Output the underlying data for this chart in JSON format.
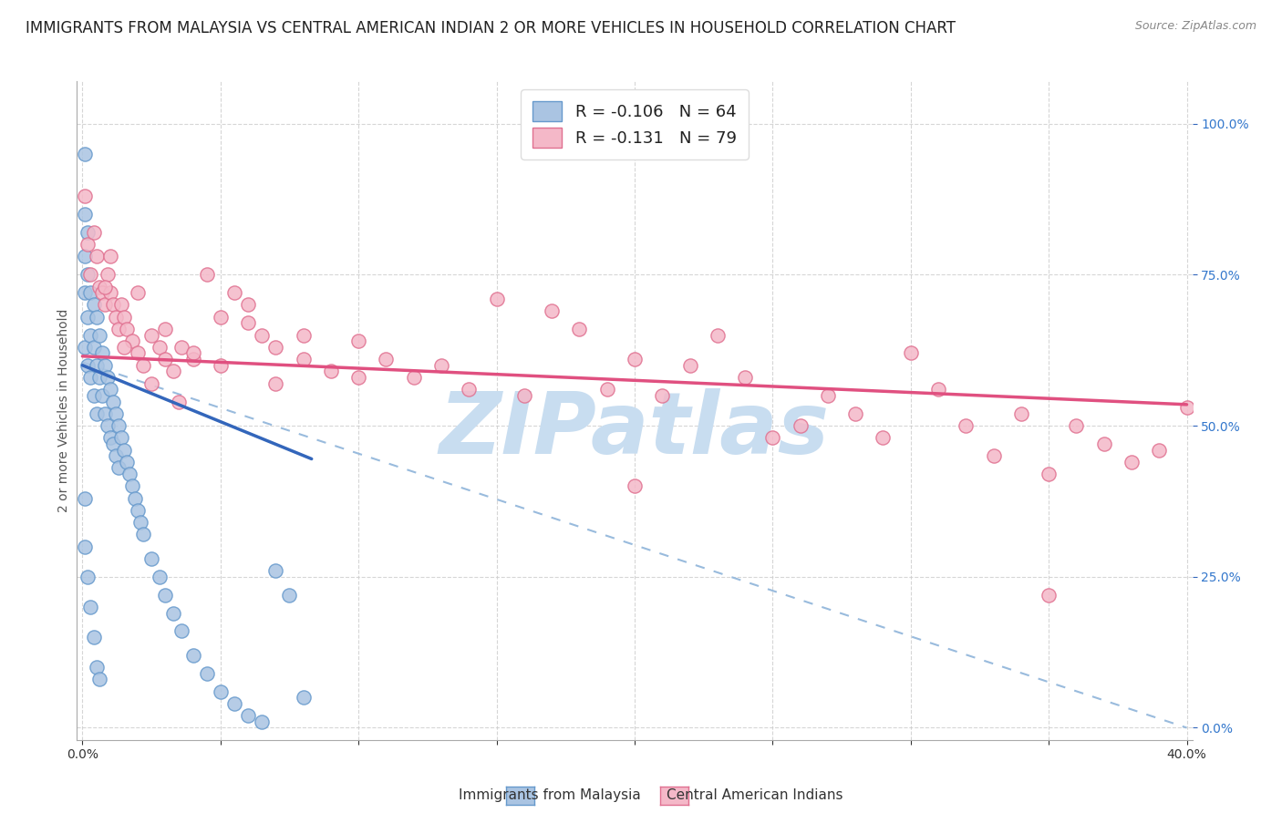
{
  "title": "IMMIGRANTS FROM MALAYSIA VS CENTRAL AMERICAN INDIAN 2 OR MORE VEHICLES IN HOUSEHOLD CORRELATION CHART",
  "source": "Source: ZipAtlas.com",
  "ylabel": "2 or more Vehicles in Household",
  "yticks_labels": [
    "0.0%",
    "25.0%",
    "50.0%",
    "75.0%",
    "100.0%"
  ],
  "ytick_vals": [
    0.0,
    0.25,
    0.5,
    0.75,
    1.0
  ],
  "xtick_vals": [
    0.0,
    0.05,
    0.1,
    0.15,
    0.2,
    0.25,
    0.3,
    0.35,
    0.4
  ],
  "legend_entry1": "R = -0.106   N = 64",
  "legend_entry2": "R = -0.131   N = 79",
  "legend_label1": "Immigrants from Malaysia",
  "legend_label2": "Central American Indians",
  "color_blue_fill": "#aac4e2",
  "color_blue_edge": "#6699cc",
  "color_pink_fill": "#f4b8c8",
  "color_pink_edge": "#e07090",
  "color_blue_line": "#3366bb",
  "color_pink_line": "#e05080",
  "color_dashed": "#99bbdd",
  "watermark_text": "ZIPatlas",
  "watermark_color": "#c8ddf0",
  "blue_line_x": [
    0.0,
    0.083
  ],
  "blue_line_y": [
    0.6,
    0.445
  ],
  "pink_line_x": [
    0.0,
    0.4
  ],
  "pink_line_y": [
    0.615,
    0.535
  ],
  "dashed_line_x": [
    0.0,
    0.4
  ],
  "dashed_line_y": [
    0.605,
    0.0
  ],
  "xlim": [
    -0.002,
    0.402
  ],
  "ylim": [
    -0.02,
    1.07
  ],
  "grid_color": "#cccccc",
  "background_color": "#ffffff",
  "title_fontsize": 12,
  "source_fontsize": 9,
  "tick_fontsize": 10,
  "legend_fontsize": 13,
  "ylabel_fontsize": 10,
  "blue_x": [
    0.001,
    0.001,
    0.001,
    0.001,
    0.001,
    0.002,
    0.002,
    0.002,
    0.002,
    0.003,
    0.003,
    0.003,
    0.004,
    0.004,
    0.004,
    0.005,
    0.005,
    0.005,
    0.006,
    0.006,
    0.007,
    0.007,
    0.008,
    0.008,
    0.009,
    0.009,
    0.01,
    0.01,
    0.011,
    0.011,
    0.012,
    0.012,
    0.013,
    0.013,
    0.014,
    0.015,
    0.016,
    0.017,
    0.018,
    0.019,
    0.02,
    0.021,
    0.022,
    0.025,
    0.028,
    0.03,
    0.033,
    0.036,
    0.04,
    0.045,
    0.05,
    0.055,
    0.06,
    0.065,
    0.07,
    0.075,
    0.08,
    0.001,
    0.001,
    0.002,
    0.003,
    0.004,
    0.005,
    0.006
  ],
  "blue_y": [
    0.95,
    0.85,
    0.78,
    0.72,
    0.63,
    0.82,
    0.75,
    0.68,
    0.6,
    0.72,
    0.65,
    0.58,
    0.7,
    0.63,
    0.55,
    0.68,
    0.6,
    0.52,
    0.65,
    0.58,
    0.62,
    0.55,
    0.6,
    0.52,
    0.58,
    0.5,
    0.56,
    0.48,
    0.54,
    0.47,
    0.52,
    0.45,
    0.5,
    0.43,
    0.48,
    0.46,
    0.44,
    0.42,
    0.4,
    0.38,
    0.36,
    0.34,
    0.32,
    0.28,
    0.25,
    0.22,
    0.19,
    0.16,
    0.12,
    0.09,
    0.06,
    0.04,
    0.02,
    0.01,
    0.26,
    0.22,
    0.05,
    0.38,
    0.3,
    0.25,
    0.2,
    0.15,
    0.1,
    0.08
  ],
  "pink_x": [
    0.001,
    0.002,
    0.003,
    0.004,
    0.005,
    0.006,
    0.007,
    0.008,
    0.009,
    0.01,
    0.011,
    0.012,
    0.013,
    0.014,
    0.015,
    0.016,
    0.018,
    0.02,
    0.022,
    0.025,
    0.028,
    0.03,
    0.033,
    0.036,
    0.04,
    0.045,
    0.05,
    0.055,
    0.06,
    0.065,
    0.07,
    0.08,
    0.09,
    0.1,
    0.11,
    0.12,
    0.13,
    0.14,
    0.15,
    0.16,
    0.17,
    0.18,
    0.19,
    0.2,
    0.21,
    0.22,
    0.23,
    0.24,
    0.25,
    0.26,
    0.27,
    0.28,
    0.29,
    0.3,
    0.31,
    0.32,
    0.33,
    0.34,
    0.35,
    0.36,
    0.37,
    0.38,
    0.39,
    0.4,
    0.008,
    0.015,
    0.025,
    0.035,
    0.05,
    0.07,
    0.01,
    0.02,
    0.03,
    0.04,
    0.06,
    0.08,
    0.1,
    0.2,
    0.35
  ],
  "pink_y": [
    0.88,
    0.8,
    0.75,
    0.82,
    0.78,
    0.73,
    0.72,
    0.7,
    0.75,
    0.72,
    0.7,
    0.68,
    0.66,
    0.7,
    0.68,
    0.66,
    0.64,
    0.62,
    0.6,
    0.65,
    0.63,
    0.61,
    0.59,
    0.63,
    0.61,
    0.75,
    0.68,
    0.72,
    0.7,
    0.65,
    0.63,
    0.61,
    0.59,
    0.64,
    0.61,
    0.58,
    0.6,
    0.56,
    0.71,
    0.55,
    0.69,
    0.66,
    0.56,
    0.61,
    0.55,
    0.6,
    0.65,
    0.58,
    0.48,
    0.5,
    0.55,
    0.52,
    0.48,
    0.62,
    0.56,
    0.5,
    0.45,
    0.52,
    0.42,
    0.5,
    0.47,
    0.44,
    0.46,
    0.53,
    0.73,
    0.63,
    0.57,
    0.54,
    0.6,
    0.57,
    0.78,
    0.72,
    0.66,
    0.62,
    0.67,
    0.65,
    0.58,
    0.4,
    0.22
  ]
}
